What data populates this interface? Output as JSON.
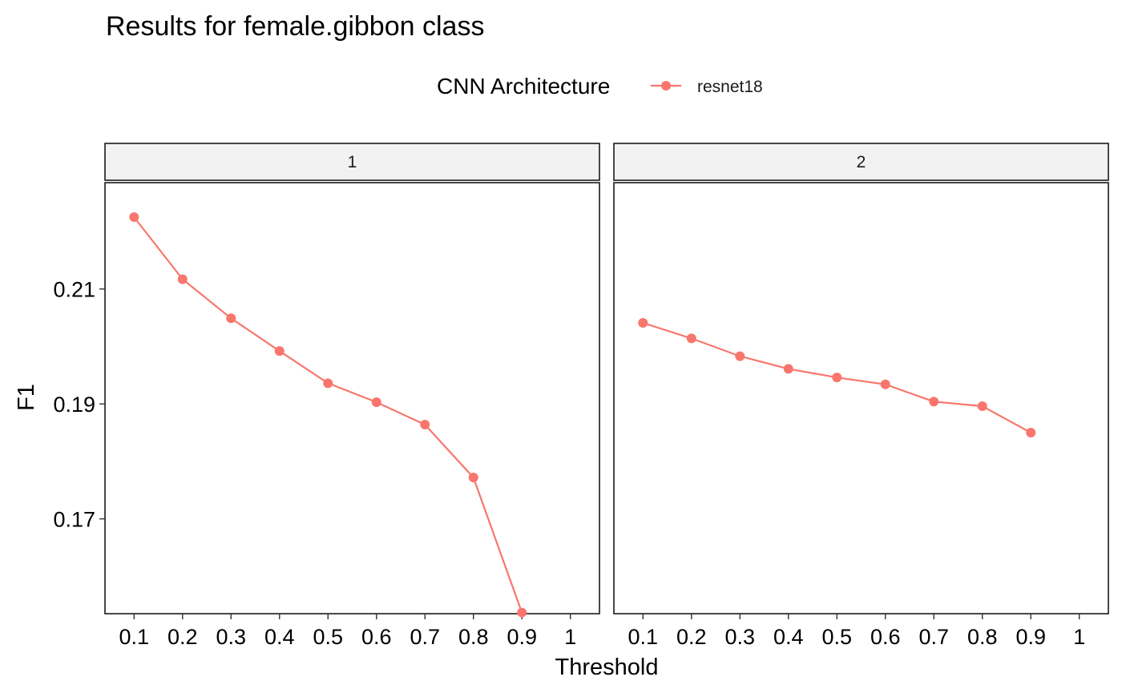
{
  "chart_data": {
    "type": "line",
    "title": "Results for female.gibbon class",
    "xlabel": "Threshold",
    "ylabel": "F1",
    "legend": {
      "title": "CNN Architecture",
      "position": "top"
    },
    "x_ticks": [
      0.1,
      0.2,
      0.3,
      0.4,
      0.5,
      0.6,
      0.7,
      0.8,
      0.9,
      1
    ],
    "x_tick_labels": [
      "0.1",
      "0.2",
      "0.3",
      "0.4",
      "0.5",
      "0.6",
      "0.7",
      "0.8",
      "0.9",
      "1"
    ],
    "y_ticks": [
      0.17,
      0.19,
      0.21
    ],
    "y_tick_labels": [
      "0.17",
      "0.19",
      "0.21"
    ],
    "xlim": [
      0.04,
      1.06
    ],
    "ylim": [
      0.1535,
      0.2285
    ],
    "grid": false,
    "series_color": "#F8766D",
    "facets": [
      {
        "label": "1",
        "series": [
          {
            "name": "resnet18",
            "x": [
              0.1,
              0.2,
              0.3,
              0.4,
              0.5,
              0.6,
              0.7,
              0.8,
              0.9
            ],
            "values": [
              0.2225,
              0.2117,
              0.2049,
              0.1992,
              0.1936,
              0.1903,
              0.1864,
              0.1772,
              0.1537
            ]
          }
        ]
      },
      {
        "label": "2",
        "series": [
          {
            "name": "resnet18",
            "x": [
              0.1,
              0.2,
              0.3,
              0.4,
              0.5,
              0.6,
              0.7,
              0.8,
              0.9
            ],
            "values": [
              0.2041,
              0.2014,
              0.1983,
              0.1961,
              0.1946,
              0.1934,
              0.1904,
              0.1896,
              0.185
            ]
          }
        ]
      }
    ]
  }
}
